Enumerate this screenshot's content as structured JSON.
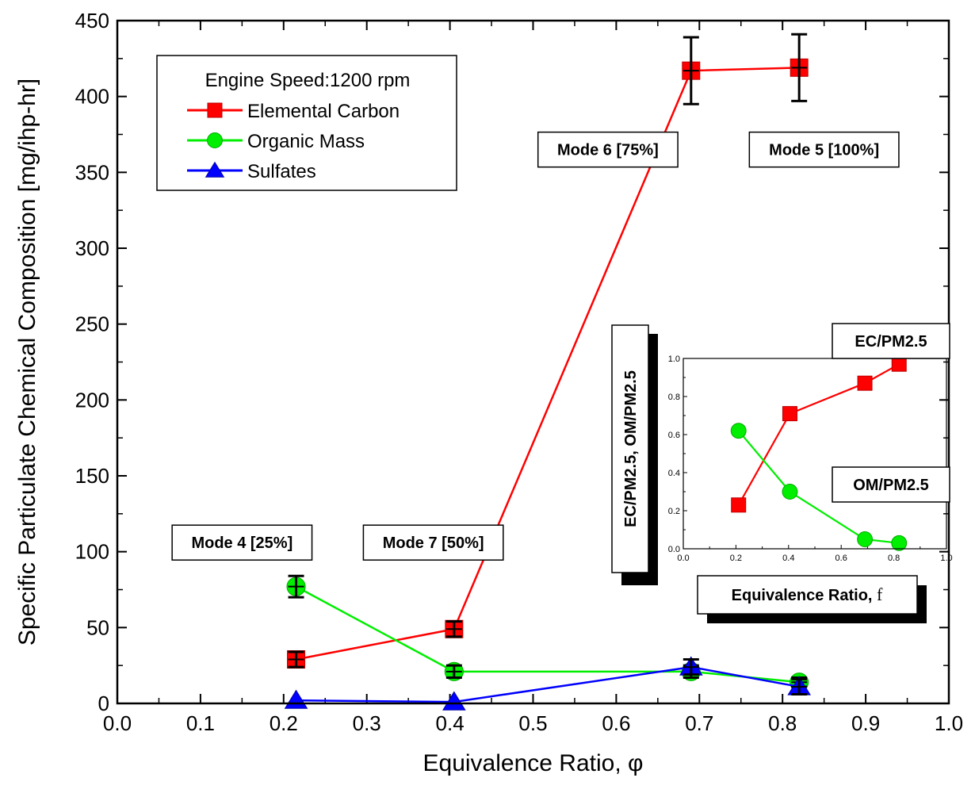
{
  "chart_data": [
    {
      "type": "line",
      "title": "",
      "xlabel": "Equivalence Ratio, ",
      "xlabel_symbol": "φ",
      "ylabel": "Specific Particulate Chemical Composition [mg/ihp-hr]",
      "xlim": [
        0.0,
        1.0
      ],
      "ylim": [
        0,
        450
      ],
      "xticks": [
        "0.0",
        "0.1",
        "0.2",
        "0.3",
        "0.4",
        "0.5",
        "0.6",
        "0.7",
        "0.8",
        "0.9",
        "1.0"
      ],
      "yticks": [
        "0",
        "50",
        "100",
        "150",
        "200",
        "250",
        "300",
        "350",
        "400",
        "450"
      ],
      "legend_title": "Engine Speed:1200 rpm",
      "legend_position": "top-left",
      "series": [
        {
          "name": "Elemental Carbon",
          "color": "#ff0000",
          "marker": "square",
          "x": [
            0.215,
            0.405,
            0.69,
            0.82
          ],
          "y": [
            29,
            49,
            417,
            419
          ],
          "err": [
            5,
            5,
            22,
            22
          ]
        },
        {
          "name": "Organic Mass",
          "color": "#00ee00",
          "marker": "circle",
          "x": [
            0.215,
            0.405,
            0.69,
            0.82
          ],
          "y": [
            77,
            21,
            21,
            14
          ],
          "err": [
            7,
            4,
            4,
            3
          ]
        },
        {
          "name": "Sulfates",
          "color": "#0000ff",
          "marker": "triangle",
          "x": [
            0.215,
            0.405,
            0.69,
            0.82
          ],
          "y": [
            2,
            1,
            24,
            11
          ],
          "err": [
            0,
            0,
            5,
            5
          ]
        }
      ],
      "annotations": [
        {
          "text": "Mode 4 [25%]",
          "x": 0.15,
          "y": 106
        },
        {
          "text": "Mode 7 [50%]",
          "x": 0.38,
          "y": 106
        },
        {
          "text": "Mode 6 [75%]",
          "x": 0.59,
          "y": 365
        },
        {
          "text": "Mode 5 [100%]",
          "x": 0.85,
          "y": 365
        }
      ]
    },
    {
      "type": "line",
      "title": "",
      "xlabel": "Equivalence Ratio, ",
      "xlabel_symbol": "f",
      "ylabel": "EC/PM2.5, OM/PM2.5",
      "xlim": [
        0.0,
        1.0
      ],
      "ylim": [
        0.0,
        1.0
      ],
      "xticks": [
        "0.0",
        "0.2",
        "0.4",
        "0.6",
        "0.8",
        "1.0"
      ],
      "yticks": [
        "0.0",
        "0.2",
        "0.4",
        "0.6",
        "0.8",
        "1.0"
      ],
      "series": [
        {
          "name": "EC/PM2.5",
          "color": "#ff0000",
          "marker": "square",
          "x": [
            0.21,
            0.405,
            0.69,
            0.82
          ],
          "y": [
            0.23,
            0.71,
            0.87,
            0.97
          ]
        },
        {
          "name": "OM/PM2.5",
          "color": "#00ee00",
          "marker": "circle",
          "x": [
            0.21,
            0.405,
            0.69,
            0.82
          ],
          "y": [
            0.62,
            0.3,
            0.05,
            0.03
          ]
        }
      ]
    }
  ]
}
